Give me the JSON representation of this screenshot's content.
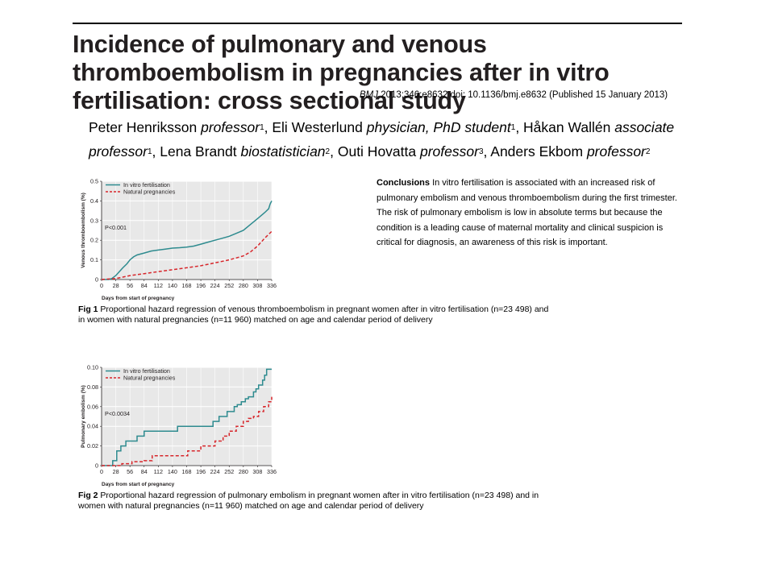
{
  "title": "Incidence of pulmonary and venous thromboembolism in pregnancies after in vitro fertilisation: cross sectional study",
  "citation": {
    "journal": "BMJ",
    "rest": " 2013;346:e8632 doi: 10.1136/bmj.e8632 (Published 15 January 2013)"
  },
  "authors": [
    {
      "name": "Peter Henriksson",
      "role": "professor",
      "sup": "1"
    },
    {
      "name": "Eli Westerlund",
      "role": "physician, PhD student",
      "sup": "1"
    },
    {
      "name": "Håkan Wallén",
      "role": "associate professor",
      "sup": "1"
    },
    {
      "name": "Lena Brandt",
      "role": "biostatistician",
      "sup": "2"
    },
    {
      "name": "Outi Hovatta",
      "role": "professor",
      "sup": "3"
    },
    {
      "name": "Anders Ekbom",
      "role": "professor",
      "sup": "2"
    }
  ],
  "conclusions": {
    "heading": "Conclusions",
    "text": " In vitro fertilisation is associated with an increased risk of pulmonary embolism and venous thromboembolism during the first trimester. The risk of pulmonary embolism is low in absolute terms but because the condition is a leading cause of maternal mortality and clinical suspicion is critical for diagnosis, an awareness of this risk is important."
  },
  "colors": {
    "ivf": "#2e8b8f",
    "natural": "#d7262b",
    "plot_bg": "#e8e8e8",
    "grid": "#ffffff"
  },
  "figures": [
    {
      "caption_label": "Fig 1",
      "caption_text": " Proportional hazard regression of venous thromboembolism in pregnant women after in vitro fertilisation (n=23 498) and in women with natural pregnancies (n=11 960) matched on age and calendar period of delivery"
    },
    {
      "caption_label": "Fig 2",
      "caption_text": " Proportional hazard regression of pulmonary embolism in pregnant women after in vitro fertilisation (n=23 498) and in women with natural pregnancies (n=11 960) matched on age and calendar period of delivery"
    }
  ],
  "chart_data": [
    {
      "type": "line",
      "title": "",
      "xlabel": "Days from start of pregnancy",
      "ylabel": "Venous thromboembolism (%)",
      "xlim": [
        0,
        336
      ],
      "ylim": [
        0,
        0.5
      ],
      "xticks": [
        0,
        28,
        56,
        84,
        112,
        140,
        168,
        196,
        224,
        252,
        280,
        308,
        336
      ],
      "xtick_labels": [
        "0",
        "28",
        "56",
        "84",
        "112",
        "140",
        "168",
        "196",
        "224",
        "252",
        "280",
        "308",
        "336"
      ],
      "yticks": [
        0,
        0.1,
        0.2,
        0.3,
        0.4,
        0.5
      ],
      "ytick_labels": [
        "0",
        "0.1",
        "0.2",
        "0.3",
        "0.4",
        "0.5"
      ],
      "grid": true,
      "legend_position": "top-left",
      "annotation": "P<0.001",
      "series": [
        {
          "name": "In vitro fertilisation",
          "color_key": "ivf",
          "dash": false,
          "x": [
            0,
            14,
            20,
            28,
            35,
            42,
            50,
            56,
            63,
            70,
            84,
            98,
            112,
            126,
            140,
            154,
            168,
            182,
            196,
            210,
            224,
            238,
            252,
            266,
            280,
            294,
            308,
            322,
            330,
            333,
            336
          ],
          "y": [
            0,
            0,
            0.005,
            0.02,
            0.04,
            0.06,
            0.08,
            0.1,
            0.115,
            0.125,
            0.135,
            0.145,
            0.15,
            0.155,
            0.16,
            0.162,
            0.165,
            0.17,
            0.18,
            0.19,
            0.2,
            0.21,
            0.22,
            0.235,
            0.25,
            0.28,
            0.31,
            0.34,
            0.36,
            0.385,
            0.4
          ]
        },
        {
          "name": "Natural pregnancies",
          "color_key": "natural",
          "dash": true,
          "x": [
            0,
            28,
            56,
            84,
            112,
            140,
            168,
            196,
            224,
            252,
            266,
            280,
            294,
            308,
            322,
            336
          ],
          "y": [
            0,
            0.005,
            0.02,
            0.03,
            0.04,
            0.05,
            0.06,
            0.07,
            0.085,
            0.1,
            0.11,
            0.12,
            0.14,
            0.17,
            0.21,
            0.245
          ]
        }
      ]
    },
    {
      "type": "line",
      "title": "",
      "xlabel": "Days from start of pregnancy",
      "ylabel": "Pulmonary embolism (%)",
      "xlim": [
        0,
        336
      ],
      "ylim": [
        0,
        0.1
      ],
      "xticks": [
        0,
        28,
        56,
        84,
        112,
        140,
        168,
        196,
        224,
        252,
        280,
        308,
        336
      ],
      "xtick_labels": [
        "0",
        "28",
        "56",
        "84",
        "112",
        "140",
        "168",
        "196",
        "224",
        "252",
        "280",
        "308",
        "336"
      ],
      "yticks": [
        0,
        0.02,
        0.04,
        0.06,
        0.08,
        0.1
      ],
      "ytick_labels": [
        "0",
        "0.02",
        "0.04",
        "0.06",
        "0.08",
        "0.10"
      ],
      "grid": true,
      "legend_position": "top-left",
      "annotation": "P<0.0034",
      "series": [
        {
          "name": "In vitro fertilisation",
          "color_key": "ivf",
          "dash": false,
          "step": true,
          "x": [
            0,
            18,
            22,
            30,
            38,
            48,
            70,
            84,
            150,
            155,
            220,
            232,
            240,
            248,
            256,
            262,
            268,
            276,
            284,
            290,
            300,
            305,
            310,
            318,
            322,
            326,
            336
          ],
          "y": [
            0,
            0,
            0.005,
            0.015,
            0.02,
            0.025,
            0.03,
            0.035,
            0.04,
            0.04,
            0.045,
            0.05,
            0.05,
            0.055,
            0.055,
            0.06,
            0.062,
            0.065,
            0.068,
            0.07,
            0.075,
            0.078,
            0.082,
            0.087,
            0.092,
            0.098,
            0.098
          ]
        },
        {
          "name": "Natural pregnancies",
          "color_key": "natural",
          "dash": true,
          "step": true,
          "x": [
            0,
            40,
            60,
            84,
            100,
            140,
            170,
            196,
            224,
            240,
            252,
            266,
            280,
            290,
            300,
            310,
            320,
            330,
            336
          ],
          "y": [
            0,
            0.002,
            0.004,
            0.005,
            0.01,
            0.01,
            0.015,
            0.02,
            0.025,
            0.03,
            0.035,
            0.04,
            0.045,
            0.048,
            0.05,
            0.055,
            0.06,
            0.065,
            0.07
          ]
        }
      ]
    }
  ]
}
